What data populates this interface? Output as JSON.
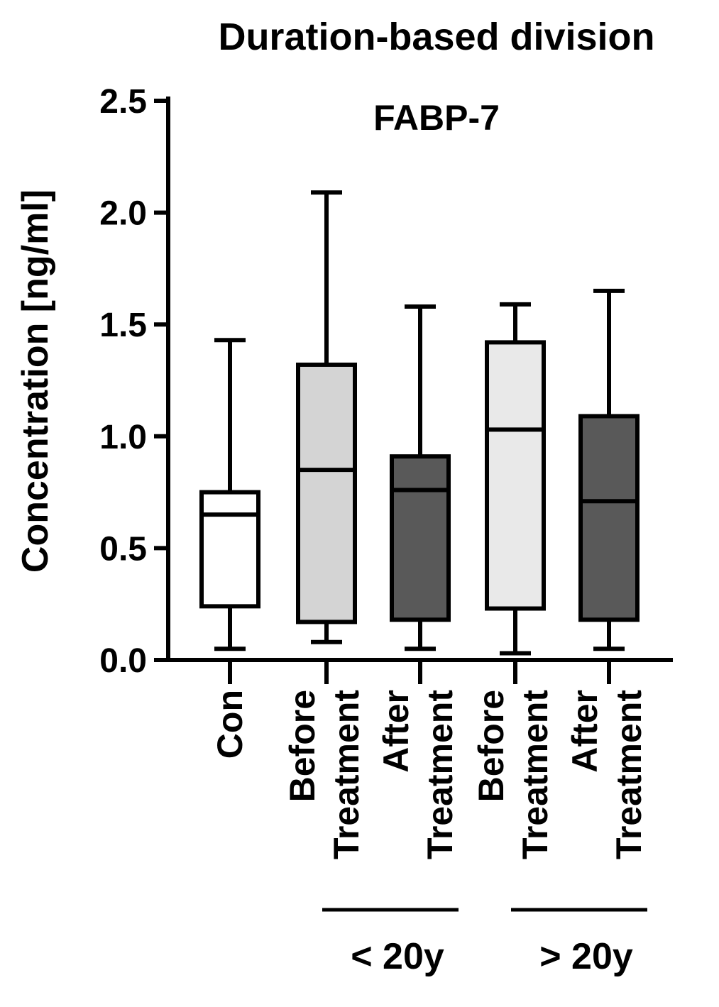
{
  "chart_data": {
    "type": "box",
    "heading": "Duration-based division",
    "title": "FABP-7",
    "ylabel": "Concentration [ng/ml]",
    "ylim": [
      0,
      2.5
    ],
    "yticks": [
      "0.0",
      "0.5",
      "1.0",
      "1.5",
      "2.0",
      "2.5"
    ],
    "colors": {
      "white": "#ffffff",
      "light_gray": "#d4d4d4",
      "lighter_gray": "#e9e9e9",
      "dark_gray": "#595959",
      "axis": "#000000"
    },
    "boxes": [
      {
        "lines": [
          "Con"
        ],
        "min": 0.05,
        "q1": 0.24,
        "median": 0.65,
        "q3": 0.75,
        "max": 1.43,
        "fill": "white"
      },
      {
        "lines": [
          "Before",
          "Treatment"
        ],
        "min": 0.08,
        "q1": 0.17,
        "median": 0.85,
        "q3": 1.32,
        "max": 2.09,
        "fill": "light_gray"
      },
      {
        "lines": [
          "After",
          "Treatment"
        ],
        "min": 0.05,
        "q1": 0.18,
        "median": 0.76,
        "q3": 0.91,
        "max": 1.58,
        "fill": "dark_gray"
      },
      {
        "lines": [
          "Before",
          "Treatment"
        ],
        "min": 0.03,
        "q1": 0.23,
        "median": 1.03,
        "q3": 1.42,
        "max": 1.59,
        "fill": "lighter_gray"
      },
      {
        "lines": [
          "After",
          "Treatment"
        ],
        "min": 0.05,
        "q1": 0.18,
        "median": 0.71,
        "q3": 1.09,
        "max": 1.65,
        "fill": "dark_gray"
      }
    ],
    "groups": [
      {
        "label": "< 20y",
        "from": 1,
        "to": 2
      },
      {
        "label": "> 20y",
        "from": 3,
        "to": 4
      }
    ]
  }
}
